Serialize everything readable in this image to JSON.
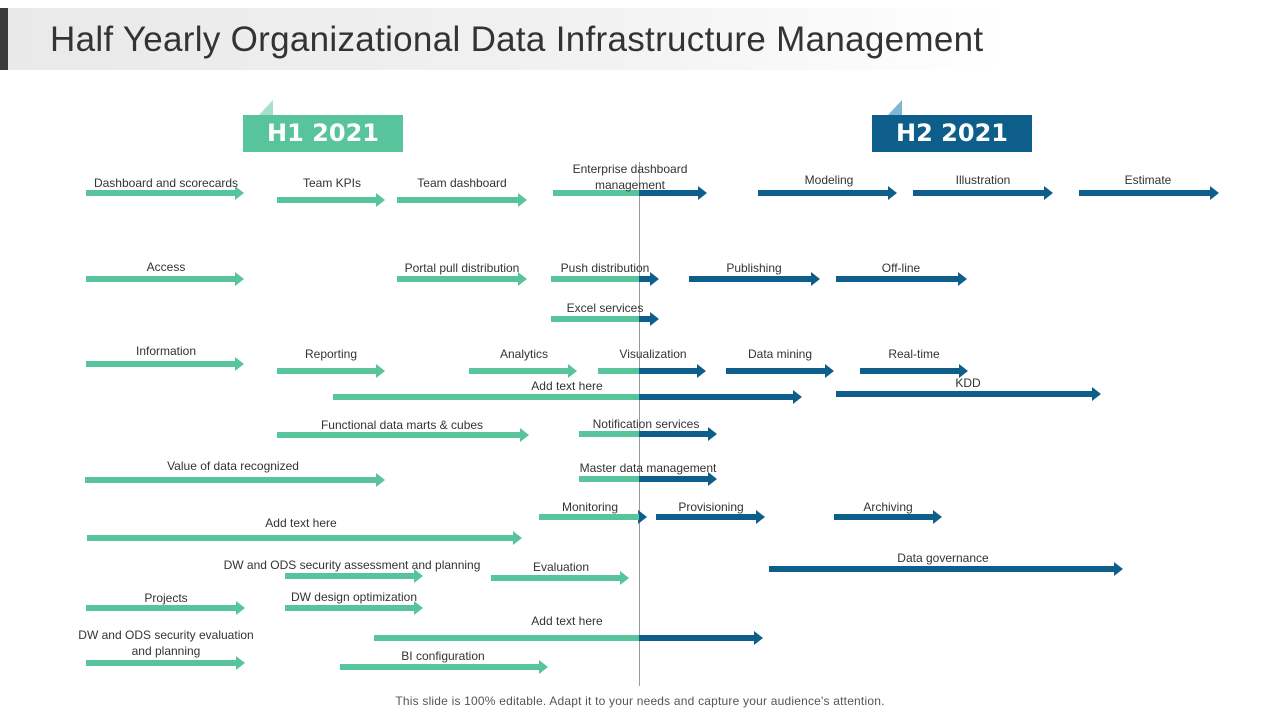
{
  "title": "Half Yearly Organizational Data Infrastructure Management",
  "periods": [
    {
      "label": "H1 2021",
      "color": "#58c49b"
    },
    {
      "label": "H2 2021",
      "color": "#0d5e8a"
    }
  ],
  "colors": {
    "h1": "#58c49b",
    "h2": "#0d5e8a"
  },
  "items": [
    {
      "label": "Dashboard and scorecards",
      "period": "H1"
    },
    {
      "label": "Team KPIs",
      "period": "H1"
    },
    {
      "label": "Team dashboard",
      "period": "H1"
    },
    {
      "label": "Enterprise dashboard management",
      "period": "H1-H2"
    },
    {
      "label": "Modeling",
      "period": "H2"
    },
    {
      "label": "Illustration",
      "period": "H2"
    },
    {
      "label": "Estimate",
      "period": "H2"
    },
    {
      "label": "Access",
      "period": "H1"
    },
    {
      "label": "Portal pull distribution",
      "period": "H1"
    },
    {
      "label": "Push distribution",
      "period": "H1-H2"
    },
    {
      "label": "Publishing",
      "period": "H2"
    },
    {
      "label": "Off-line",
      "period": "H2"
    },
    {
      "label": "Excel services",
      "period": "H1-H2"
    },
    {
      "label": "Information",
      "period": "H1"
    },
    {
      "label": "Reporting",
      "period": "H1"
    },
    {
      "label": "Analytics",
      "period": "H1"
    },
    {
      "label": "Visualization",
      "period": "H1-H2"
    },
    {
      "label": "Data mining",
      "period": "H2"
    },
    {
      "label": "Real-time",
      "period": "H2"
    },
    {
      "label": "Add text here",
      "period": "H1-H2"
    },
    {
      "label": "KDD",
      "period": "H2"
    },
    {
      "label": "Functional data marts & cubes",
      "period": "H1"
    },
    {
      "label": "Notification services",
      "period": "H1-H2"
    },
    {
      "label": "Value of data recognized",
      "period": "H1"
    },
    {
      "label": "Master data management",
      "period": "H1-H2"
    },
    {
      "label": "Monitoring",
      "period": "H1-H2"
    },
    {
      "label": "Provisioning",
      "period": "H2"
    },
    {
      "label": "Archiving",
      "period": "H2"
    },
    {
      "label": "Add text here",
      "period": "H1"
    },
    {
      "label": "DW and ODS security assessment and planning",
      "period": "H1"
    },
    {
      "label": "Evaluation",
      "period": "H1"
    },
    {
      "label": "Data governance",
      "period": "H2"
    },
    {
      "label": "Projects",
      "period": "H1"
    },
    {
      "label": "DW design optimization",
      "period": "H1"
    },
    {
      "label": "DW and ODS security evaluation and planning",
      "period": "H1"
    },
    {
      "label": "Add text here",
      "period": "H1-H2"
    },
    {
      "label": "BI configuration",
      "period": "H1"
    }
  ],
  "footer": "This slide is 100% editable. Adapt it to your needs and capture your audience's attention."
}
